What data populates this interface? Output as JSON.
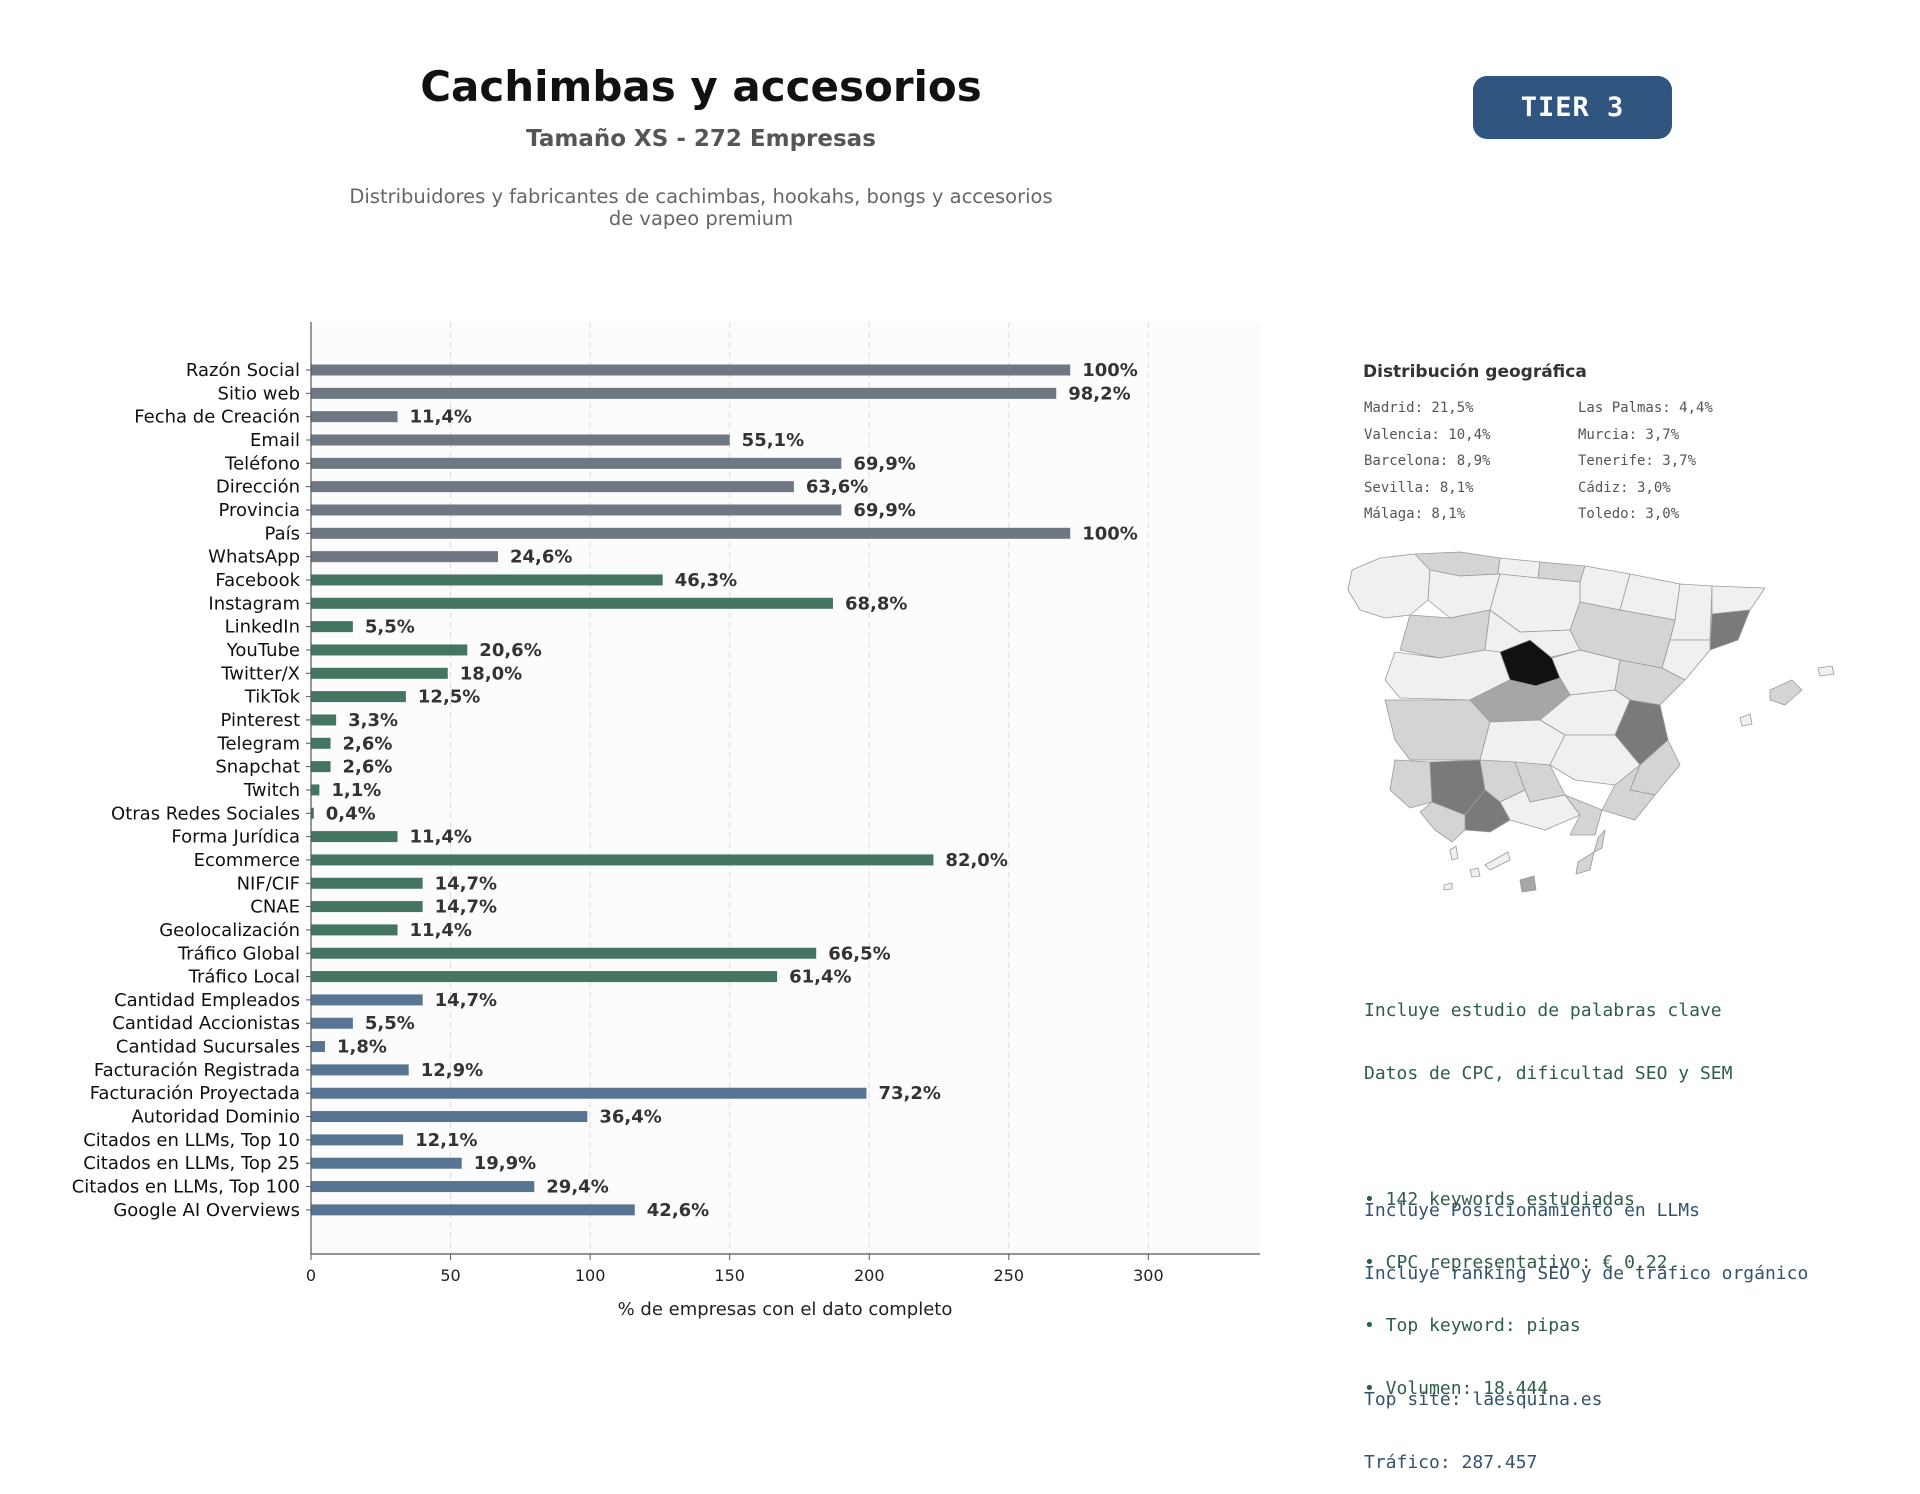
{
  "header": {
    "title": "Cachimbas y accesorios",
    "subtitle": "Tamaño XS - 272 Empresas",
    "description_line1": "Distribuidores y fabricantes de cachimbas, hookahs, bongs y accesorios",
    "description_line2": "de vapeo premium",
    "tier_badge": "TIER 3"
  },
  "colors": {
    "gray": "#6e7782",
    "green": "#447561",
    "blue": "#577592",
    "badge": "#2f5580",
    "madrid": "#111111",
    "high": "#7a7a7a",
    "mid": "#a6a6a6",
    "low": "#d4d4d4",
    "lowest": "#f0f0f0"
  },
  "chart_data": {
    "type": "bar",
    "orientation": "horizontal",
    "xlabel": "% de empresas con el dato completo",
    "xticks": [
      0,
      50,
      100,
      150,
      200,
      250,
      300
    ],
    "xlim": [
      0,
      340
    ],
    "grid": "vertical dashed",
    "categories": [
      "Razón Social",
      "Sitio web",
      "Fecha de Creación",
      "Email",
      "Teléfono",
      "Dirección",
      "Provincia",
      "País",
      "WhatsApp",
      "Facebook",
      "Instagram",
      "LinkedIn",
      "YouTube",
      "Twitter/X",
      "TikTok",
      "Pinterest",
      "Telegram",
      "Snapchat",
      "Twitch",
      "Otras Redes Sociales",
      "Forma Jurídica",
      "Ecommerce",
      "NIF/CIF",
      "CNAE",
      "Geolocalización",
      "Tráfico Global",
      "Tráfico Local",
      "Cantidad Empleados",
      "Cantidad Accionistas",
      "Cantidad Sucursales",
      "Facturación Registrada",
      "Facturación Proyectada",
      "Autoridad Dominio",
      "Citados en LLMs, Top 10",
      "Citados en LLMs, Top 25",
      "Citados en LLMs, Top 100",
      "Google AI Overviews"
    ],
    "values": [
      272,
      267,
      31,
      150,
      190,
      173,
      190,
      272,
      67,
      126,
      187,
      15,
      56,
      49,
      34,
      9,
      7,
      7,
      3,
      1,
      31,
      223,
      40,
      40,
      31,
      181,
      167,
      40,
      15,
      5,
      35,
      199,
      99,
      33,
      54,
      80,
      116
    ],
    "labels": [
      "100%",
      "98,2%",
      "11,4%",
      "55,1%",
      "69,9%",
      "63,6%",
      "69,9%",
      "100%",
      "24,6%",
      "46,3%",
      "68,8%",
      "5,5%",
      "20,6%",
      "18,0%",
      "12,5%",
      "3,3%",
      "2,6%",
      "2,6%",
      "1,1%",
      "0,4%",
      "11,4%",
      "82,0%",
      "14,7%",
      "14,7%",
      "11,4%",
      "66,5%",
      "61,4%",
      "14,7%",
      "5,5%",
      "1,8%",
      "12,9%",
      "73,2%",
      "36,4%",
      "12,1%",
      "19,9%",
      "29,4%",
      "42,6%"
    ],
    "groups": [
      "gray",
      "gray",
      "gray",
      "gray",
      "gray",
      "gray",
      "gray",
      "gray",
      "gray",
      "green",
      "green",
      "green",
      "green",
      "green",
      "green",
      "green",
      "green",
      "green",
      "green",
      "green",
      "green",
      "green",
      "green",
      "green",
      "green",
      "green",
      "green",
      "blue",
      "blue",
      "blue",
      "blue",
      "blue",
      "blue",
      "blue",
      "blue",
      "blue",
      "blue"
    ]
  },
  "geo": {
    "title": "Distribución geográfica",
    "left_column": [
      "Madrid: 21,5%",
      "Valencia: 10,4%",
      "Barcelona: 8,9%",
      "Sevilla: 8,1%",
      "Málaga: 8,1%"
    ],
    "right_column": [
      "Las Palmas: 4,4%",
      "Murcia: 3,7%",
      "Tenerife: 3,7%",
      "Cádiz: 3,0%",
      "Toledo: 3,0%"
    ]
  },
  "keywords": {
    "line1": "Incluye estudio de palabras clave",
    "line2": "Datos de CPC, dificultad SEO y SEM",
    "bullets": [
      "• 142 keywords estudiadas",
      "• CPC representativo: € 0.22",
      "• Top keyword: pipas",
      "• Volumen: 18.444"
    ]
  },
  "llm": {
    "line1": "Incluye Posicionamiento en LLMs",
    "line2": "Incluye ranking SEO y de tráfico orgánico",
    "top_site": "Top site: laesquina.es",
    "traffic": "Tráfico: 287.457"
  }
}
